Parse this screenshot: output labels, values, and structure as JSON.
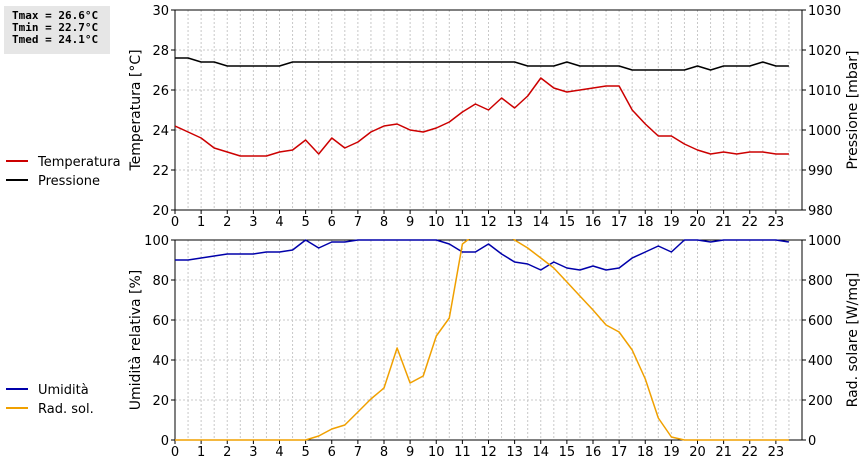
{
  "stats": [
    "Tmax = 26.6°C",
    "Tmin = 22.7°C",
    "Tmed = 24.1°C"
  ],
  "chart_data": [
    {
      "type": "line",
      "x_ticks": [
        "0",
        "1",
        "2",
        "3",
        "4",
        "5",
        "6",
        "7",
        "8",
        "9",
        "10",
        "11",
        "12",
        "13",
        "14",
        "15",
        "16",
        "17",
        "18",
        "19",
        "20",
        "21",
        "22",
        "23"
      ],
      "left_axis": {
        "label": "Temperatura [°C]",
        "lim": [
          20,
          30
        ],
        "ticks": [
          20,
          22,
          24,
          26,
          28,
          30
        ]
      },
      "right_axis": {
        "label": "Pressione [mbar]",
        "lim": [
          980,
          1030
        ],
        "ticks": [
          980,
          990,
          1000,
          1010,
          1020,
          1030
        ]
      },
      "grid": true,
      "legend_position": "left",
      "series": [
        {
          "name": "Temperatura",
          "color": "#cc0000",
          "axis": "left",
          "x": [
            0,
            0.5,
            1,
            1.5,
            2,
            2.5,
            3,
            3.5,
            4,
            4.5,
            5,
            5.5,
            6,
            6.5,
            7,
            7.5,
            8,
            8.5,
            9,
            9.5,
            10,
            10.5,
            11,
            11.5,
            12,
            12.5,
            13,
            13.5,
            14,
            14.5,
            15,
            15.5,
            16,
            16.5,
            17,
            17.5,
            18,
            18.5,
            19,
            19.5,
            20,
            20.5,
            21,
            21.5,
            22,
            22.5,
            23,
            23.5
          ],
          "y": [
            24.2,
            23.9,
            23.6,
            23.1,
            22.9,
            22.7,
            22.7,
            22.7,
            22.9,
            23.0,
            23.5,
            22.8,
            23.6,
            23.1,
            23.4,
            23.9,
            24.2,
            24.3,
            24.0,
            23.9,
            24.1,
            24.4,
            24.9,
            25.3,
            25.0,
            25.6,
            25.1,
            25.7,
            26.6,
            26.1,
            25.9,
            26.0,
            26.1,
            26.2,
            26.2,
            25.0,
            24.3,
            23.7,
            23.7,
            23.3,
            23.0,
            22.8,
            22.9,
            22.8,
            22.9,
            22.9,
            22.8,
            22.8
          ]
        },
        {
          "name": "Pressione",
          "color": "#000000",
          "axis": "right",
          "x": [
            0,
            0.5,
            1,
            1.5,
            2,
            2.5,
            3,
            3.5,
            4,
            4.5,
            5,
            5.5,
            6,
            6.5,
            7,
            7.5,
            8,
            8.5,
            9,
            9.5,
            10,
            10.5,
            11,
            11.5,
            12,
            12.5,
            13,
            13.5,
            14,
            14.5,
            15,
            15.5,
            16,
            16.5,
            17,
            17.5,
            18,
            18.5,
            19,
            19.5,
            20,
            20.5,
            21,
            21.5,
            22,
            22.5,
            23,
            23.5
          ],
          "y": [
            1018,
            1018,
            1017,
            1017,
            1016,
            1016,
            1016,
            1016,
            1016,
            1017,
            1017,
            1017,
            1017,
            1017,
            1017,
            1017,
            1017,
            1017,
            1017,
            1017,
            1017,
            1017,
            1017,
            1017,
            1017,
            1017,
            1017,
            1016,
            1016,
            1016,
            1017,
            1016,
            1016,
            1016,
            1016,
            1015,
            1015,
            1015,
            1015,
            1015,
            1016,
            1015,
            1016,
            1016,
            1016,
            1017,
            1016,
            1016
          ]
        }
      ]
    },
    {
      "type": "line",
      "x_ticks": [
        "0",
        "1",
        "2",
        "3",
        "4",
        "5",
        "6",
        "7",
        "8",
        "9",
        "10",
        "11",
        "12",
        "13",
        "14",
        "15",
        "16",
        "17",
        "18",
        "19",
        "20",
        "21",
        "22",
        "23"
      ],
      "left_axis": {
        "label": "Umidità relativa [%]",
        "lim": [
          0,
          100
        ],
        "ticks": [
          0,
          20,
          40,
          60,
          80,
          100
        ]
      },
      "right_axis": {
        "label": "Rad. solare [W/mq]",
        "lim": [
          0,
          1000
        ],
        "ticks": [
          0,
          200,
          400,
          600,
          800,
          1000
        ]
      },
      "grid": true,
      "legend_position": "left",
      "series": [
        {
          "name": "Umidità",
          "color": "#0000aa",
          "axis": "left",
          "x": [
            0,
            0.5,
            1,
            1.5,
            2,
            2.5,
            3,
            3.5,
            4,
            4.5,
            5,
            5.5,
            6,
            6.5,
            7,
            7.5,
            8,
            8.5,
            9,
            9.5,
            10,
            10.5,
            11,
            11.5,
            12,
            12.5,
            13,
            13.5,
            14,
            14.5,
            15,
            15.5,
            16,
            16.5,
            17,
            17.5,
            18,
            18.5,
            19,
            19.5,
            20,
            20.5,
            21,
            21.5,
            22,
            22.5,
            23,
            23.5
          ],
          "y": [
            90,
            90,
            91,
            92,
            93,
            93,
            93,
            94,
            94,
            95,
            100,
            96,
            99,
            99,
            100,
            100,
            100,
            100,
            100,
            100,
            100,
            98,
            94,
            94,
            98,
            93,
            89,
            88,
            85,
            89,
            86,
            85,
            87,
            85,
            86,
            91,
            94,
            97,
            94,
            100,
            100,
            99,
            100,
            100,
            100,
            100,
            100,
            99
          ]
        },
        {
          "name": "Rad. sol.",
          "color": "#f0a000",
          "axis": "right",
          "x": [
            0,
            0.5,
            1,
            1.5,
            2,
            2.5,
            3,
            3.5,
            4,
            4.5,
            5,
            5.5,
            6,
            6.5,
            7,
            7.5,
            8,
            8.5,
            9,
            9.5,
            10,
            10.5,
            11,
            11.5,
            12,
            12.5,
            13,
            13.5,
            14,
            14.5,
            15,
            15.5,
            16,
            16.5,
            17,
            17.5,
            18,
            18.5,
            19,
            19.5,
            20,
            20.5,
            21,
            21.5,
            22,
            22.5,
            23,
            23.5
          ],
          "y": [
            0,
            0,
            0,
            0,
            0,
            0,
            0,
            0,
            0,
            0,
            0,
            20,
            55,
            75,
            140,
            205,
            260,
            460,
            285,
            320,
            520,
            610,
            980,
            1030,
            1080,
            1060,
            1000,
            960,
            910,
            860,
            790,
            720,
            650,
            575,
            540,
            450,
            305,
            110,
            15,
            0,
            0,
            0,
            0,
            0,
            0,
            0,
            0,
            0
          ]
        }
      ]
    }
  ]
}
